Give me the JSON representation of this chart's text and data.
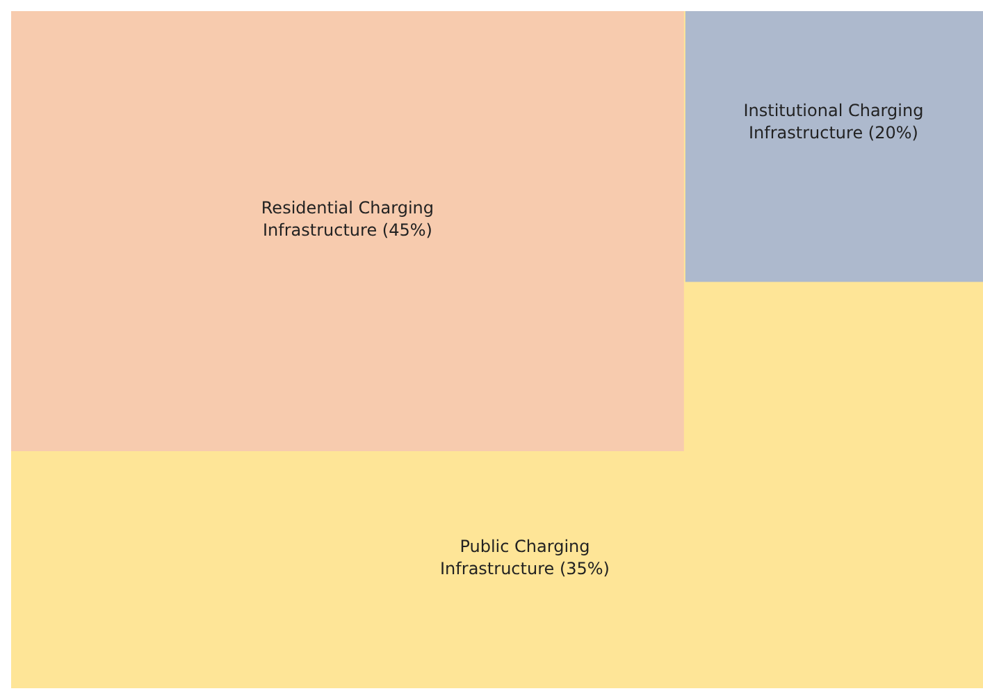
{
  "chart_data": {
    "type": "other",
    "categories": [
      "Residential Charging Infrastructure",
      "Institutional Charging Infrastructure",
      "Public Charging Infrastructure"
    ],
    "values": [
      45,
      20,
      35
    ],
    "value_labels": [
      "(45%)",
      "(20%)",
      "(35%)"
    ],
    "colors": [
      "#f7cbae",
      "#adb9cd",
      "#fee597"
    ]
  }
}
